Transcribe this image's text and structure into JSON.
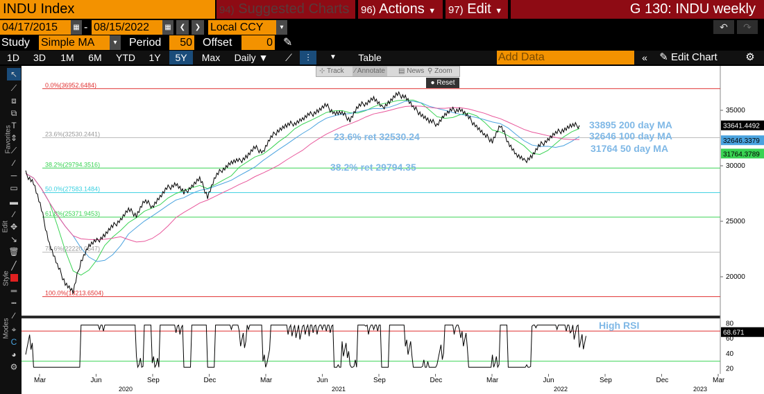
{
  "header": {
    "ticker": "INDU Index",
    "suggested_num": "94)",
    "suggested_label": "Suggested Charts",
    "actions_num": "96)",
    "actions_label": "Actions",
    "edit_num": "97)",
    "edit_label": "Edit",
    "chart_id": "G 130: INDU weekly"
  },
  "range": {
    "start": "04/17/2015",
    "end": "08/15/2022",
    "currency": "Local CCY"
  },
  "study": {
    "label": "Study",
    "value": "Simple MA",
    "period_label": "Period",
    "period": "50",
    "offset_label": "Offset",
    "offset": "0"
  },
  "toolbar": {
    "periods": [
      "1D",
      "3D",
      "1M",
      "6M",
      "YTD",
      "1Y",
      "5Y",
      "Max"
    ],
    "selected": "5Y",
    "frequency": "Daily",
    "table_label": "Table",
    "add_data_placeholder": "Add Data",
    "edit_chart": "Edit Chart"
  },
  "chart_tools": {
    "track": "Track",
    "annotate": "Annotate",
    "news": "News",
    "zoom": "Zoom",
    "reset": "Reset"
  },
  "side_labels": {
    "favorites": "Favorites",
    "edit": "Edit",
    "style": "Style",
    "modes": "Modes"
  },
  "colors": {
    "orange": "#f39200",
    "red_header": "#8e0b14",
    "ma200": "#e8559a",
    "ma100": "#4aa3df",
    "ma50": "#39d353",
    "annotation": "#7fb8e6",
    "price": "#000000"
  },
  "chart_data": {
    "type": "line",
    "price_axis": {
      "ticks": [
        "35000",
        "30000",
        "25000",
        "20000"
      ],
      "range": [
        17000,
        38500
      ]
    },
    "rsi_axis": {
      "ticks": [
        "80",
        "60",
        "40",
        "20"
      ],
      "range": [
        15,
        85
      ]
    },
    "time_ticks": [
      "Mar",
      "Jun",
      "Sep",
      "Dec",
      "Mar",
      "Jun",
      "Sep",
      "Dec",
      "Mar",
      "Jun",
      "Sep",
      "Dec",
      "Mar"
    ],
    "year_labels": [
      "2020",
      "2021",
      "2022",
      "2023"
    ],
    "fib_levels": [
      {
        "label": "0.0%(36952.6484)",
        "value": 36952.6484,
        "color": "#e03030"
      },
      {
        "label": "23.6%(32530.2441)",
        "value": 32530.2441,
        "color": "#bbbbbb"
      },
      {
        "label": "38.2%(29794.3516)",
        "value": 29794.3516,
        "color": "#39d353"
      },
      {
        "label": "50.0%(27583.1484)",
        "value": 27583.1484,
        "color": "#3ad0e0"
      },
      {
        "label": "61.8%(25371.9453)",
        "value": 25371.9453,
        "color": "#39d353"
      },
      {
        "label": "78.6%(22220.0547)",
        "value": 22220.0547,
        "color": "#bbbbbb"
      },
      {
        "label": "100.0%(18213.6504)",
        "value": 18213.6504,
        "color": "#e03030"
      }
    ],
    "annotations": [
      "33895 200 day MA",
      "32646 100 day MA",
      "31764 50 day MA",
      "23.6% ret 32530.24",
      "38.2% ret 29794.35",
      "High RSI"
    ],
    "last_values": {
      "price": "33641.4492",
      "ma100": "32646.3379",
      "ma50": "31764.3789",
      "rsi": "68.671"
    },
    "series": [
      {
        "name": "price",
        "x": [
          0,
          2,
          4,
          6,
          8,
          10,
          12,
          14,
          16,
          18,
          20,
          22,
          24,
          26,
          28,
          30,
          32,
          34,
          36,
          38,
          40,
          42,
          44,
          46,
          48,
          50,
          52,
          54,
          56,
          58,
          60,
          62,
          64,
          66,
          68,
          70,
          72,
          74,
          76,
          78,
          80,
          82,
          84,
          86,
          88,
          90,
          92,
          94,
          96,
          98,
          100,
          102,
          104,
          106,
          108,
          110,
          112,
          114,
          116,
          118,
          120,
          122,
          124,
          126,
          128,
          130,
          132,
          134,
          136,
          138,
          140
        ],
        "y": [
          29300,
          28500,
          26000,
          23000,
          21000,
          19500,
          18600,
          21500,
          22800,
          23200,
          23800,
          24500,
          25200,
          26000,
          25600,
          26800,
          26400,
          27200,
          28000,
          28400,
          27500,
          28200,
          28800,
          27300,
          29000,
          29800,
          30300,
          30400,
          30900,
          31600,
          31300,
          32500,
          33300,
          33600,
          33900,
          34200,
          34600,
          35000,
          35400,
          34800,
          34700,
          34200,
          35300,
          35700,
          36100,
          35200,
          35800,
          36400,
          36300,
          35200,
          34700,
          34000,
          33800,
          34600,
          35000,
          35100,
          34300,
          33600,
          32700,
          32300,
          33600,
          32200,
          31000,
          30400,
          30900,
          31800,
          32400,
          32900,
          33300,
          33600,
          33641
        ]
      }
    ],
    "ma": [
      {
        "name": "200 day MA",
        "value": "33895"
      },
      {
        "name": "100 day MA",
        "value": "32646"
      },
      {
        "name": "50 day MA",
        "value": "31764"
      }
    ]
  }
}
